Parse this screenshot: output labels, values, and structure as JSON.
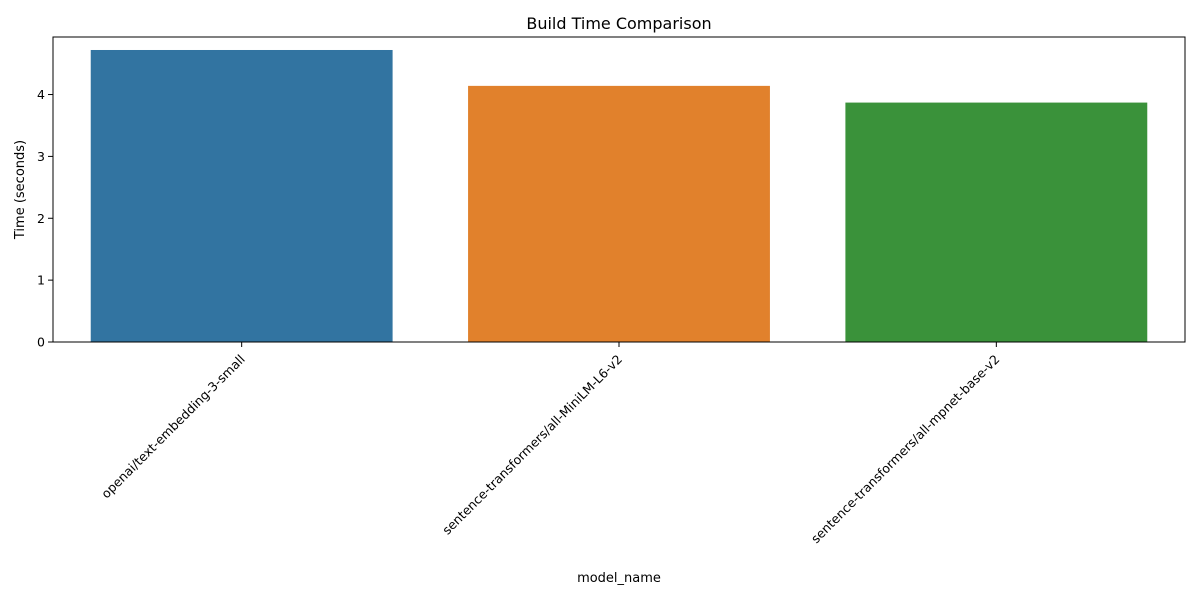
{
  "chart_data": {
    "type": "bar",
    "title": "Build Time Comparison",
    "xlabel": "model_name",
    "ylabel": "Time (seconds)",
    "categories": [
      "openai/text-embedding-3-small",
      "sentence-transformers/all-MiniLM-L6-v2",
      "sentence-transformers/all-mpnet-base-v2"
    ],
    "values": [
      4.72,
      4.14,
      3.87
    ],
    "colors": [
      "#3274a1",
      "#e1812c",
      "#3a923a"
    ],
    "ylim": [
      0,
      4.93
    ],
    "yticks": [
      0,
      1,
      2,
      3,
      4
    ],
    "grid": false,
    "legend": "none"
  }
}
